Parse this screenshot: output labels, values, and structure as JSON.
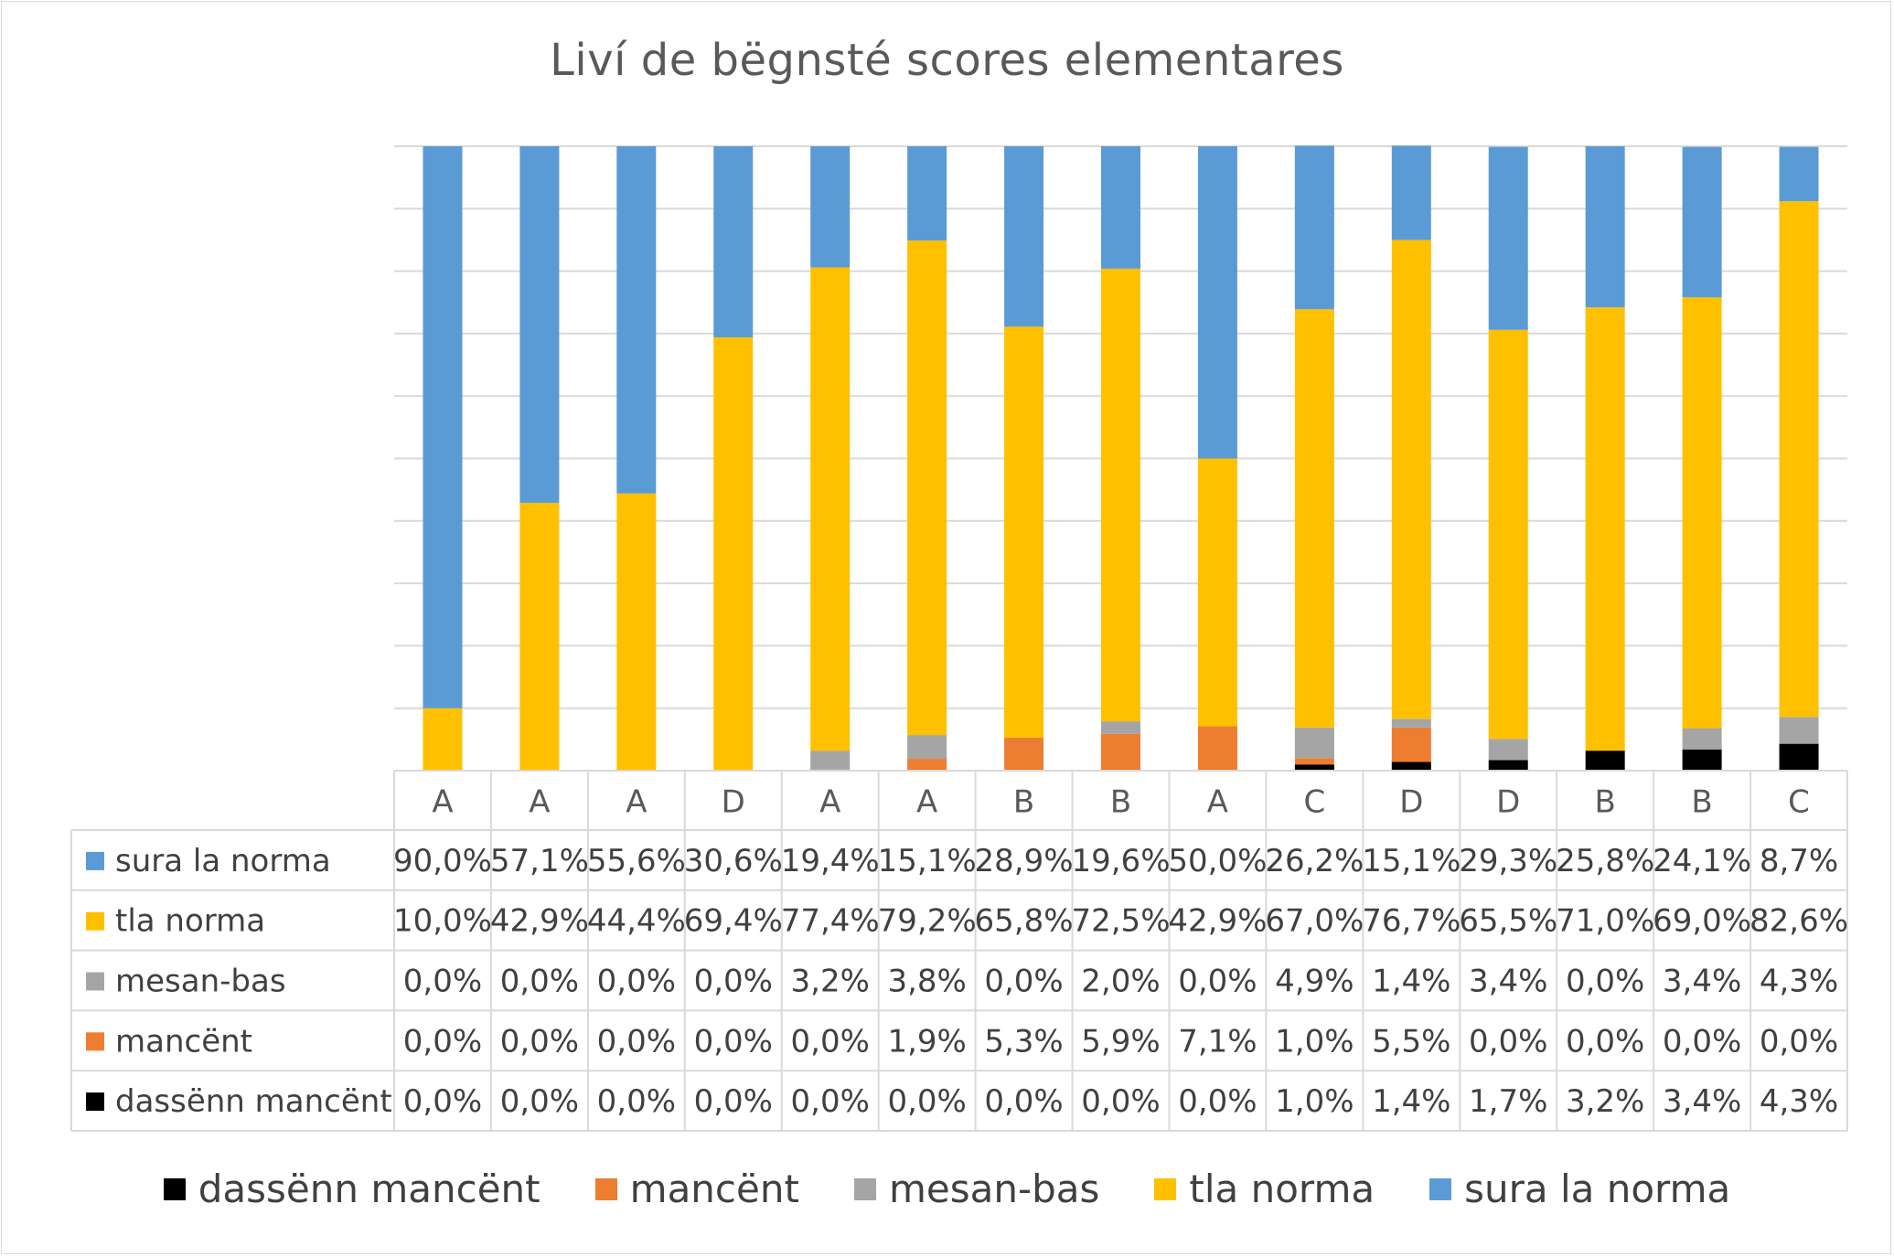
{
  "chart_data": {
    "type": "bar",
    "stacked": true,
    "percent": true,
    "title": "Liví de bëgnsté scores elementares",
    "categories": [
      "A",
      "A",
      "A",
      "D",
      "A",
      "A",
      "B",
      "B",
      "A",
      "C",
      "D",
      "D",
      "B",
      "B",
      "C"
    ],
    "ylim": [
      0,
      100
    ],
    "grid": true,
    "legend_position": "bottom",
    "series": [
      {
        "name": "dassënn mancënt",
        "table_name": "dassënn mancënt",
        "color": "#000000",
        "values": [
          0.0,
          0.0,
          0.0,
          0.0,
          0.0,
          0.0,
          0.0,
          0.0,
          0.0,
          1.0,
          1.4,
          1.7,
          3.2,
          3.4,
          4.3
        ],
        "labels": [
          "0,0%",
          "0,0%",
          "0,0%",
          "0,0%",
          "0,0%",
          "0,0%",
          "0,0%",
          "0,0%",
          "0,0%",
          "1,0%",
          "1,4%",
          "1,7%",
          "3,2%",
          "3,4%",
          "4,3%"
        ]
      },
      {
        "name": "mancënt",
        "table_name": "mancënt",
        "color": "#ED7D31",
        "values": [
          0.0,
          0.0,
          0.0,
          0.0,
          0.0,
          1.9,
          5.3,
          5.9,
          7.1,
          1.0,
          5.5,
          0.0,
          0.0,
          0.0,
          0.0
        ],
        "labels": [
          "0,0%",
          "0,0%",
          "0,0%",
          "0,0%",
          "0,0%",
          "1,9%",
          "5,3%",
          "5,9%",
          "7,1%",
          "1,0%",
          "5,5%",
          "0,0%",
          "0,0%",
          "0,0%",
          "0,0%"
        ]
      },
      {
        "name": "mesan-bas",
        "table_name": "mesan-bas",
        "color": "#A5A5A5",
        "values": [
          0.0,
          0.0,
          0.0,
          0.0,
          3.2,
          3.8,
          0.0,
          2.0,
          0.0,
          4.9,
          1.4,
          3.4,
          0.0,
          3.4,
          4.3
        ],
        "labels": [
          "0,0%",
          "0,0%",
          "0,0%",
          "0,0%",
          "3,2%",
          "3,8%",
          "0,0%",
          "2,0%",
          "0,0%",
          "4,9%",
          "1,4%",
          "3,4%",
          "0,0%",
          "3,4%",
          "4,3%"
        ]
      },
      {
        "name": "tla norma",
        "table_name": "tla norma",
        "color": "#FFC000",
        "values": [
          10.0,
          42.9,
          44.4,
          69.4,
          77.4,
          79.2,
          65.8,
          72.5,
          42.9,
          67.0,
          76.7,
          65.5,
          71.0,
          69.0,
          82.6
        ],
        "labels": [
          "10,0%",
          "42,9%",
          "44,4%",
          "69,4%",
          "77,4%",
          "79,2%",
          "65,8%",
          "72,5%",
          "42,9%",
          "67,0%",
          "76,7%",
          "65,5%",
          "71,0%",
          "69,0%",
          "82,6%"
        ]
      },
      {
        "name": "sura la norma",
        "table_name": "sura la norma",
        "color": "#5B9BD5",
        "values": [
          90.0,
          57.1,
          55.6,
          30.6,
          19.4,
          15.1,
          28.9,
          19.6,
          50.0,
          26.2,
          15.1,
          29.3,
          25.8,
          24.1,
          8.7
        ],
        "labels": [
          "90,0%",
          "57,1%",
          "55,6%",
          "30,6%",
          "19,4%",
          "15,1%",
          "28,9%",
          "19,6%",
          "50,0%",
          "26,2%",
          "15,1%",
          "29,3%",
          "25,8%",
          "24,1%",
          "8,7%"
        ]
      }
    ],
    "table_row_order": [
      "sura la norma",
      "tla norma",
      "mesan-bas",
      "mancënt",
      "dassënn mancënt"
    ],
    "legend_order": [
      "dassënn mancënt",
      "mancënt",
      "mesan-bas",
      "tla norma",
      "sura la norma"
    ],
    "legend_labels": [
      "dassënn mancënt",
      "mancënt",
      "mesan-bas",
      "tla norma",
      "sura la norma"
    ]
  }
}
